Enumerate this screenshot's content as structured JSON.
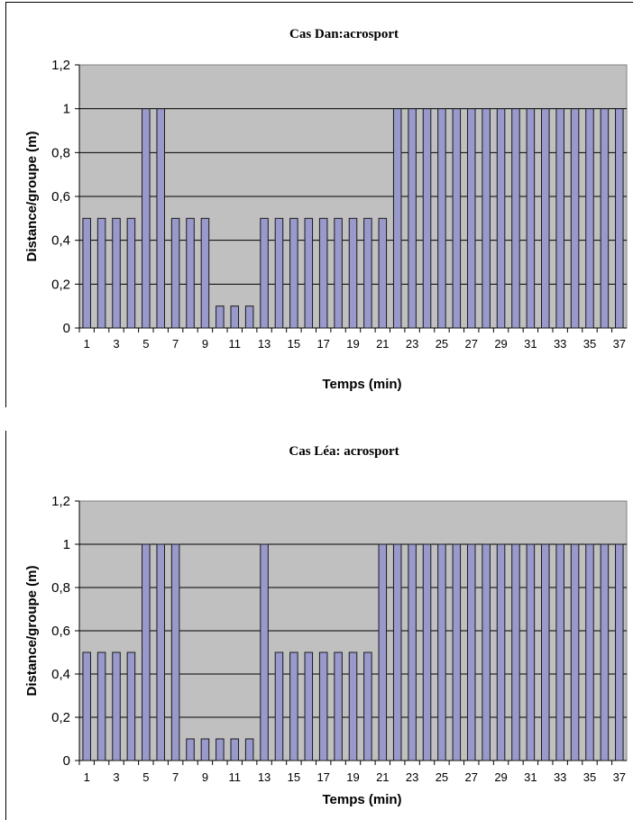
{
  "chart_data": [
    {
      "type": "bar",
      "title": "Cas Dan:acrosport",
      "xlabel": "Temps (min)",
      "ylabel": "Distance/groupe (m)",
      "ylim": [
        0,
        1.2
      ],
      "yticks": [
        "0",
        "0,2",
        "0,4",
        "0,6",
        "0,8",
        "1",
        "1,2"
      ],
      "categories": [
        1,
        2,
        3,
        4,
        5,
        6,
        7,
        8,
        9,
        10,
        11,
        12,
        13,
        14,
        15,
        16,
        17,
        18,
        19,
        20,
        21,
        22,
        23,
        24,
        25,
        26,
        27,
        28,
        29,
        30,
        31,
        32,
        33,
        34,
        35,
        36,
        37
      ],
      "xtick_labels": [
        "1",
        "3",
        "5",
        "7",
        "9",
        "11",
        "13",
        "15",
        "17",
        "19",
        "21",
        "23",
        "25",
        "27",
        "29",
        "31",
        "33",
        "35",
        "37"
      ],
      "values": [
        0.5,
        0.5,
        0.5,
        0.5,
        1,
        1,
        0.5,
        0.5,
        0.5,
        0.1,
        0.1,
        0.1,
        0.5,
        0.5,
        0.5,
        0.5,
        0.5,
        0.5,
        0.5,
        0.5,
        0.5,
        1,
        1,
        1,
        1,
        1,
        1,
        1,
        1,
        1,
        1,
        1,
        1,
        1,
        1,
        1,
        1
      ],
      "grid": true,
      "colors": {
        "bar_fill": "#9999cc",
        "bar_stroke": "#1a1a1a",
        "plot_bg": "#c0c0c0",
        "grid": "#000000"
      }
    },
    {
      "type": "bar",
      "title": "Cas Léa: acrosport",
      "xlabel": "Temps (min)",
      "ylabel": "Distance/groupe (m)",
      "ylim": [
        0,
        1.2
      ],
      "yticks": [
        "0",
        "0,2",
        "0,4",
        "0,6",
        "0,8",
        "1",
        "1,2"
      ],
      "categories": [
        1,
        2,
        3,
        4,
        5,
        6,
        7,
        8,
        9,
        10,
        11,
        12,
        13,
        14,
        15,
        16,
        17,
        18,
        19,
        20,
        21,
        22,
        23,
        24,
        25,
        26,
        27,
        28,
        29,
        30,
        31,
        32,
        33,
        34,
        35,
        36,
        37
      ],
      "xtick_labels": [
        "1",
        "3",
        "5",
        "7",
        "9",
        "11",
        "13",
        "15",
        "17",
        "19",
        "21",
        "23",
        "25",
        "27",
        "29",
        "31",
        "33",
        "35",
        "37"
      ],
      "values": [
        0.5,
        0.5,
        0.5,
        0.5,
        1,
        1,
        1,
        0.1,
        0.1,
        0.1,
        0.1,
        0.1,
        1,
        0.5,
        0.5,
        0.5,
        0.5,
        0.5,
        0.5,
        0.5,
        1,
        1,
        1,
        1,
        1,
        1,
        1,
        1,
        1,
        1,
        1,
        1,
        1,
        1,
        1,
        1,
        1
      ],
      "grid": true,
      "colors": {
        "bar_fill": "#9999cc",
        "bar_stroke": "#1a1a1a",
        "plot_bg": "#c0c0c0",
        "grid": "#000000"
      }
    }
  ]
}
